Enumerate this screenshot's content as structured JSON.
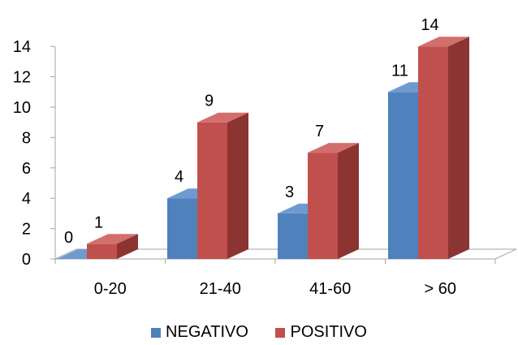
{
  "chart_data": {
    "type": "bar",
    "title": "",
    "xlabel": "",
    "ylabel": "",
    "categories": [
      "0-20",
      "21-40",
      "41-60",
      "> 60"
    ],
    "series": [
      {
        "name": "NEGATIVO",
        "values": [
          0,
          4,
          3,
          11
        ],
        "color": "#4F81BD",
        "side_color": "#3A6293",
        "top_color": "#6F9AD0"
      },
      {
        "name": "POSITIVO",
        "values": [
          1,
          9,
          7,
          14
        ],
        "color": "#C0504D",
        "side_color": "#8C3432",
        "top_color": "#D26F6C"
      }
    ],
    "ylim": [
      0,
      14
    ],
    "yticks": [
      0,
      2,
      4,
      6,
      8,
      10,
      12,
      14
    ],
    "grid": false,
    "legend": {
      "position": "bottom"
    },
    "data_labels": true,
    "three_d": true
  }
}
